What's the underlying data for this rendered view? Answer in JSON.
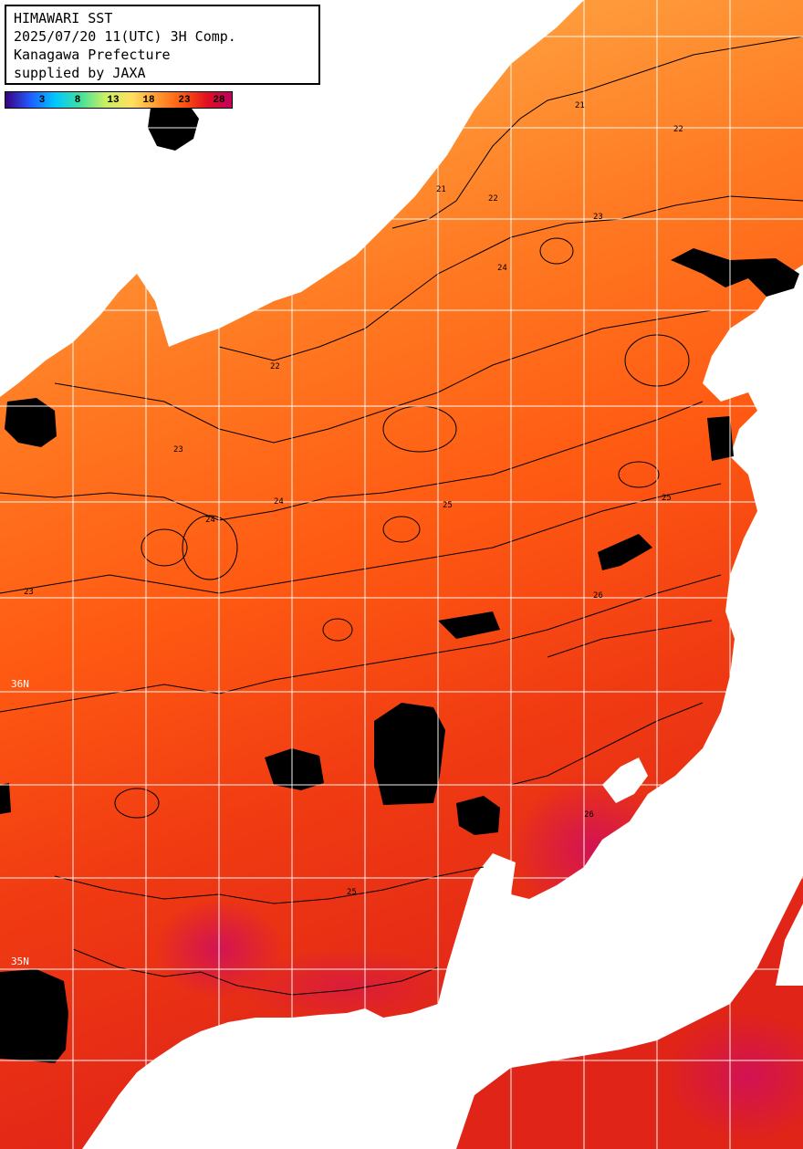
{
  "header": {
    "line1": "HIMAWARI SST",
    "line2": "2025/07/20 11(UTC) 3H Comp.",
    "line3": "Kanagawa Prefecture",
    "line4": "supplied by JAXA"
  },
  "color_scale": {
    "labels": [
      "3",
      "8",
      "13",
      "18",
      "23",
      "28"
    ],
    "colors": [
      "#3a0080",
      "#1f5cff",
      "#00c8ff",
      "#40e0a0",
      "#c8f060",
      "#ffe060",
      "#ff9a30",
      "#ff5a10",
      "#e01020",
      "#c00060"
    ]
  },
  "grid_labels": {
    "lat_mid": "36N",
    "lat_low": "35N"
  },
  "contour_labels": [
    "21",
    "22",
    "23",
    "24",
    "25",
    "26"
  ],
  "colors": {
    "land": "#ffffff",
    "cloud_mask": "#000000",
    "grid": "#ffffff",
    "contour": "#000000"
  }
}
